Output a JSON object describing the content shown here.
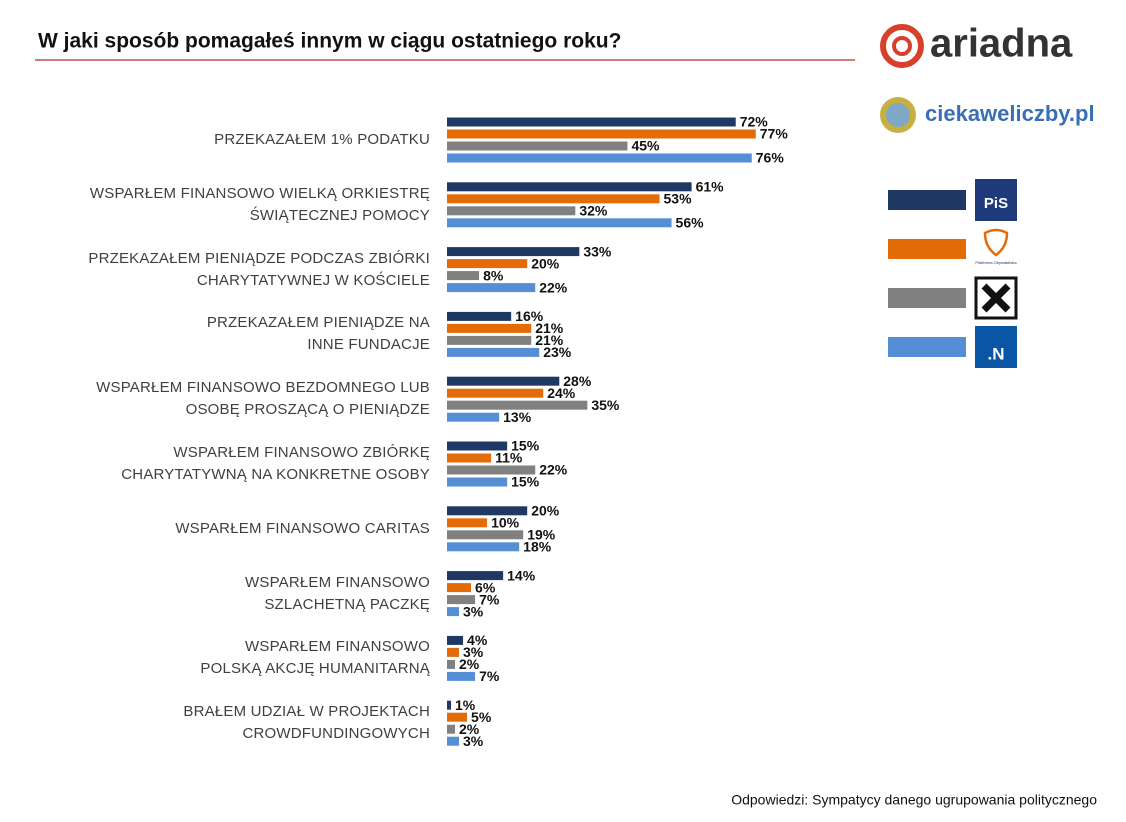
{
  "brand": "ariadna",
  "site": "ciekaweliczby.pl",
  "chart_data": {
    "type": "bar",
    "orientation": "horizontal",
    "title": "W jaki sposób pomagałeś innym w ciągu ostatniego roku?",
    "note": "Odpowiedzi: Sympatycy danego ugrupowania politycznego",
    "categories": [
      "PRZEKAZAŁEM 1% PODATKU",
      "WSPARŁEM FINANSOWO WIELKĄ ORKIESTRĘ\nŚWIĄTECZNEJ POMOCY",
      "PRZEKAZAŁEM PIENIĄDZE PODCZAS ZBIÓRKI\nCHARYTATYWNEJ W KOŚCIELE",
      "PRZEKAZAŁEM PIENIĄDZE NA\nINNE FUNDACJE",
      "WSPARŁEM FINANSOWO BEZDOMNEGO LUB\nOSOBĘ PROSZĄCĄ O PIENIĄDZE",
      "WSPARŁEM FINANSOWO ZBIÓRKĘ\nCHARYTATYWNĄ NA KONKRETNE OSOBY",
      "WSPARŁEM FINANSOWO CARITAS",
      "WSPARŁEM FINANSOWO\nSZLACHETNĄ PACZKĘ",
      "WSPARŁEM FINANSOWO\nPOLSKĄ AKCJĘ HUMANITARNĄ",
      "BRAŁEM UDZIAŁ W PROJEKTACH\nCROWDFUNDINGOWYCH"
    ],
    "xlim": [
      0,
      100
    ],
    "series": [
      {
        "name": "PiS",
        "color": "#1f3864",
        "values": [
          72,
          61,
          33,
          16,
          28,
          15,
          20,
          14,
          4,
          1
        ],
        "value_labels": [
          "72%",
          "61%",
          "33%",
          "16%",
          "28%",
          "15%",
          "20%",
          "14%",
          "4%",
          "1%"
        ]
      },
      {
        "name": "Platforma Obywatelska",
        "color": "#e36c09",
        "values": [
          77,
          53,
          20,
          21,
          24,
          11,
          10,
          6,
          3,
          5
        ],
        "value_labels": [
          "77%",
          "53%",
          "20%",
          "21%",
          "24%",
          "11%",
          "10%",
          "6%",
          "3%",
          "5%"
        ]
      },
      {
        "color": "#808080",
        "values": [
          45,
          32,
          8,
          21,
          35,
          22,
          19,
          7,
          2,
          2
        ],
        "value_labels": [
          "45%",
          "32%",
          "8%",
          "21%",
          "35%",
          "22%",
          "19%",
          "7%",
          "2%",
          "2%"
        ]
      },
      {
        "name": ".N",
        "color": "#558ed5",
        "values": [
          76,
          56,
          22,
          23,
          13,
          15,
          18,
          3,
          7,
          3
        ],
        "value_labels": [
          "76%",
          "56%",
          "22%",
          "23%",
          "13%",
          "15%",
          "18%",
          "3%",
          "7%",
          "3%"
        ]
      }
    ],
    "legend": "right"
  }
}
